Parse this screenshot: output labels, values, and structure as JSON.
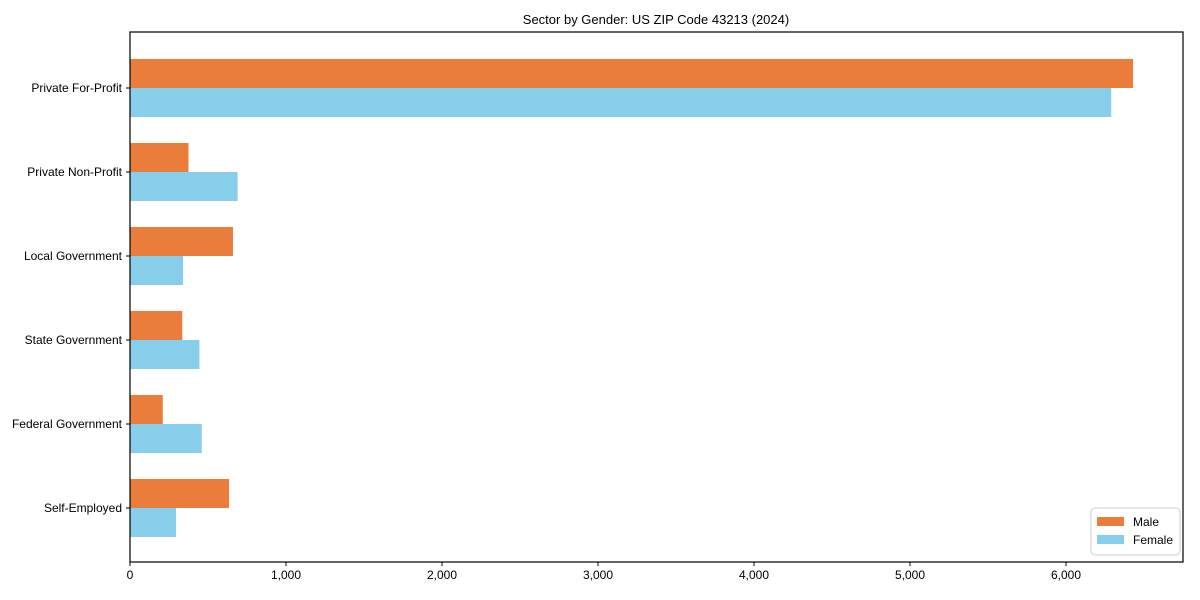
{
  "chart_data": {
    "type": "bar",
    "orientation": "horizontal",
    "title": "Sector by Gender: US ZIP Code 43213 (2024)",
    "categories": [
      "Private For-Profit",
      "Private Non-Profit",
      "Local Government",
      "State Government",
      "Federal Government",
      "Self-Employed"
    ],
    "series": [
      {
        "name": "Male",
        "color": "#EB7D3C",
        "values": [
          6430,
          375,
          660,
          335,
          210,
          635
        ]
      },
      {
        "name": "Female",
        "color": "#87CEEB",
        "values": [
          6290,
          690,
          340,
          445,
          460,
          295
        ]
      }
    ],
    "xlabel": "",
    "ylabel": "",
    "xlim": [
      0,
      6750
    ],
    "x_ticks": [
      {
        "value": 0,
        "label": "0"
      },
      {
        "value": 1000,
        "label": "1,000"
      },
      {
        "value": 2000,
        "label": "2,000"
      },
      {
        "value": 3000,
        "label": "3,000"
      },
      {
        "value": 4000,
        "label": "4,000"
      },
      {
        "value": 5000,
        "label": "5,000"
      },
      {
        "value": 6000,
        "label": "6,000"
      }
    ],
    "grid": false,
    "legend_position": "lower right",
    "axis_color": "#000000",
    "background_color": "#ffffff"
  }
}
